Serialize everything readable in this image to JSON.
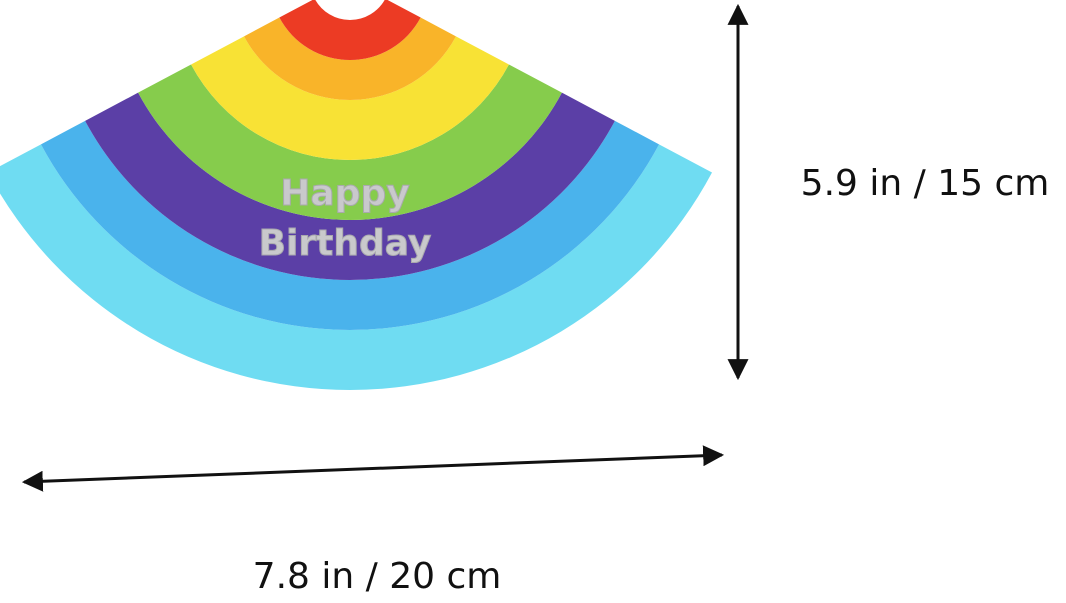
{
  "product": {
    "text_line_1": "Happy",
    "text_line_2": "Birthday"
  },
  "dimensions": {
    "height": "5.9 in / 15 cm",
    "width": "7.8 in / 20 cm"
  }
}
